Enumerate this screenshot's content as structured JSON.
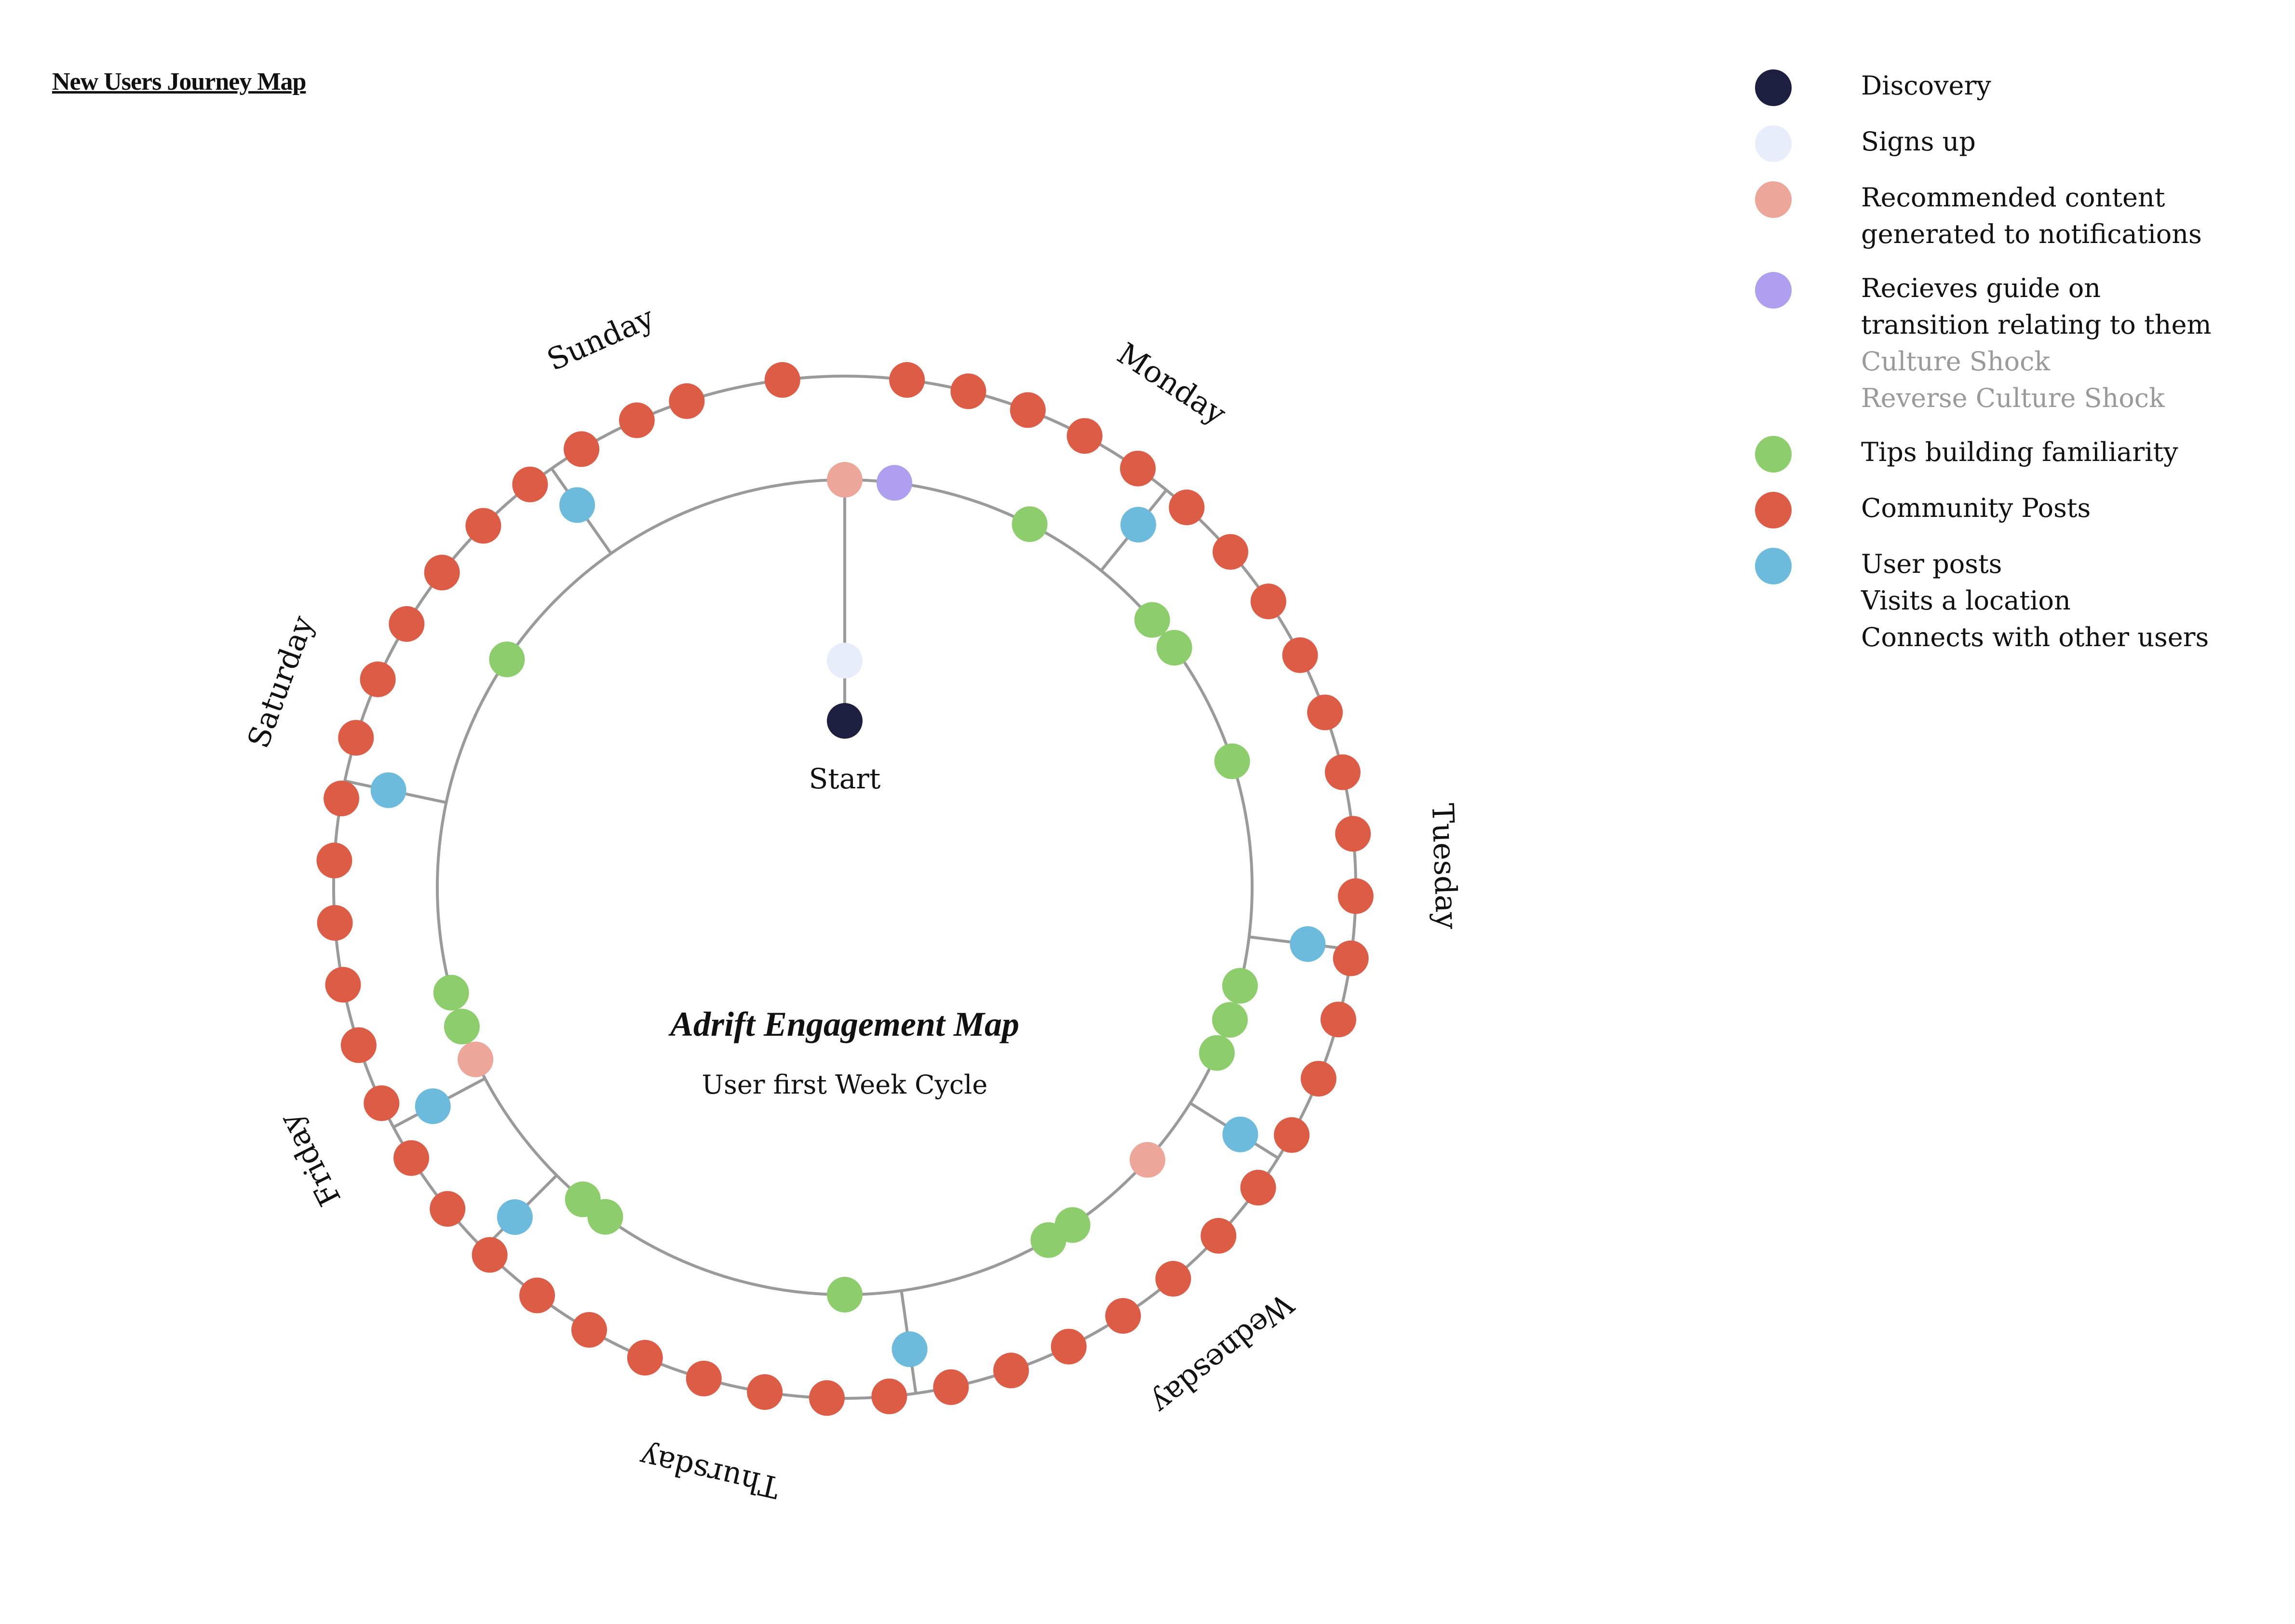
{
  "page_title": "New Users Journey Map",
  "diagram": {
    "title": "Adrift Engagement Map",
    "subtitle": "User first Week Cycle",
    "start_label": "Start",
    "days": [
      "Monday",
      "Tuesday",
      "Wednesday",
      "Thursday",
      "Friday",
      "Saturday",
      "Sunday"
    ]
  },
  "legend": [
    {
      "key": "discovery",
      "color": "#1c1f3f",
      "lines": [
        {
          "text": "Discovery",
          "muted": false
        }
      ]
    },
    {
      "key": "signup",
      "color": "#e8eef9",
      "lines": [
        {
          "text": "Signs up",
          "muted": false
        }
      ]
    },
    {
      "key": "recommended",
      "color": "#eca79a",
      "lines": [
        {
          "text": "Recommended content",
          "muted": false
        },
        {
          "text": "generated to notifications",
          "muted": false
        }
      ]
    },
    {
      "key": "guide",
      "color": "#aea0ee",
      "lines": [
        {
          "text": "Recieves guide on",
          "muted": false
        },
        {
          "text": "transition relating to them",
          "muted": false
        },
        {
          "text": "Culture Shock",
          "muted": true
        },
        {
          "text": "Reverse Culture Shock",
          "muted": true
        }
      ]
    },
    {
      "key": "tips",
      "color": "#8dcd6c",
      "lines": [
        {
          "text": "Tips building familiarity",
          "muted": false
        }
      ]
    },
    {
      "key": "community",
      "color": "#dc5c46",
      "lines": [
        {
          "text": "Community Posts",
          "muted": false
        }
      ]
    },
    {
      "key": "user_posts",
      "color": "#6cbadc",
      "lines": [
        {
          "text": "User posts",
          "muted": false
        },
        {
          "text": "Visits a location",
          "muted": false
        },
        {
          "text": "Connects with other users",
          "muted": false
        }
      ]
    }
  ]
}
